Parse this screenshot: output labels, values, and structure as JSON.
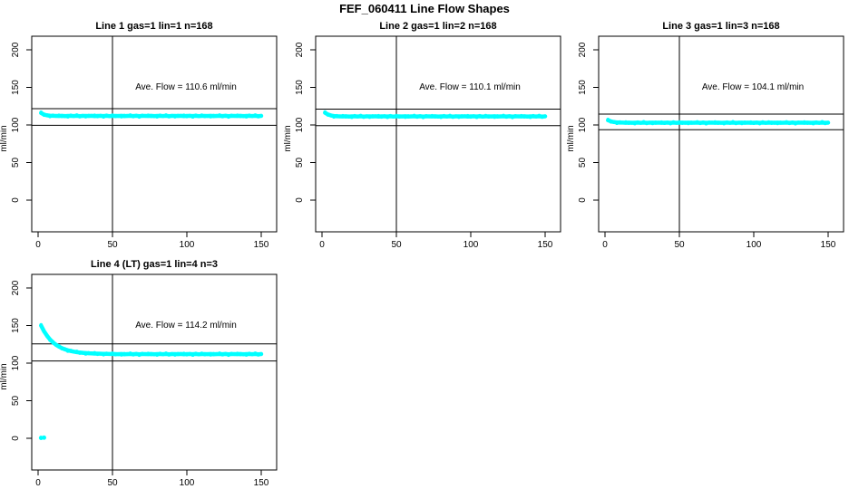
{
  "page_title": "FEF_060411  Line Flow Shapes",
  "colors": {
    "data_points": "#00FFFF",
    "axis": "#000000",
    "background": "#FFFFFF"
  },
  "chart_data": {
    "type": "scatter",
    "title": "FEF_060411  Line Flow Shapes",
    "xlabel": "",
    "ylabel": "ml/min",
    "xlim": [
      0,
      155
    ],
    "ylim": [
      0,
      200
    ],
    "xticks": [
      0,
      50,
      100,
      150
    ],
    "yticks": [
      0,
      50,
      100,
      150,
      200
    ],
    "grid": false,
    "legend": "none",
    "point_color": "#00FFFF",
    "vline_x": 50,
    "x": [
      2,
      4,
      6,
      8,
      10,
      12,
      14,
      16,
      18,
      20,
      22,
      24,
      26,
      28,
      30,
      32,
      34,
      36,
      38,
      40,
      42,
      44,
      46,
      48,
      50,
      52,
      54,
      56,
      58,
      60,
      62,
      64,
      66,
      68,
      70,
      72,
      74,
      76,
      78,
      80,
      82,
      84,
      86,
      88,
      90,
      92,
      94,
      96,
      98,
      100,
      102,
      104,
      106,
      108,
      110,
      112,
      114,
      116,
      118,
      120,
      122,
      124,
      126,
      128,
      130,
      132,
      134,
      136,
      138,
      140,
      142,
      144,
      146,
      148,
      150
    ],
    "subplots": [
      {
        "title": "Line 1 gas=1 lin=1 n=168",
        "ave_flow": 110.6,
        "annotation": "Ave. Flow =  110.6  ml/min",
        "ref_lines_y": [
          99.5,
          121.7
        ],
        "band_spread": 2.2,
        "y": [
          115.9,
          113.8,
          112.8,
          112.4,
          112.2,
          112.1,
          111.9,
          112.2,
          111.8,
          112.0,
          112.1,
          111.9,
          112.2,
          111.8,
          112.0,
          112.1,
          111.9,
          112.2,
          111.8,
          112.0,
          112.1,
          111.9,
          112.2,
          111.8,
          112.0,
          112.1,
          111.9,
          112.2,
          111.8,
          112.0,
          112.1,
          111.9,
          112.2,
          111.8,
          112.0,
          112.1,
          111.9,
          112.2,
          111.8,
          112.0,
          112.1,
          111.9,
          112.2,
          111.8,
          112.0,
          112.1,
          111.9,
          112.2,
          111.8,
          112.0,
          112.1,
          111.9,
          112.2,
          111.8,
          112.0,
          112.1,
          111.9,
          112.2,
          111.8,
          112.0,
          112.1,
          111.9,
          112.2,
          111.8,
          112.0,
          112.1,
          111.9,
          112.2,
          111.8,
          112.0,
          112.1,
          111.9,
          112.2,
          111.8,
          112.0
        ],
        "outliers": []
      },
      {
        "title": "Line 2 gas=1 lin=2 n=168",
        "ave_flow": 110.1,
        "annotation": "Ave. Flow =  110.1  ml/min",
        "ref_lines_y": [
          99.1,
          121.1
        ],
        "band_spread": 2.2,
        "y": [
          116.2,
          114.0,
          112.6,
          111.9,
          111.6,
          111.5,
          111.3,
          111.6,
          111.2,
          111.4,
          111.5,
          111.3,
          111.6,
          111.2,
          111.4,
          111.5,
          111.3,
          111.6,
          111.2,
          111.4,
          111.5,
          111.3,
          111.6,
          111.2,
          111.4,
          111.5,
          111.3,
          111.6,
          111.2,
          111.4,
          111.5,
          111.3,
          111.6,
          111.2,
          111.4,
          111.5,
          111.3,
          111.6,
          111.2,
          111.4,
          111.5,
          111.3,
          111.6,
          111.2,
          111.4,
          111.5,
          111.3,
          111.6,
          111.2,
          111.4,
          111.5,
          111.3,
          111.6,
          111.2,
          111.4,
          111.5,
          111.3,
          111.6,
          111.2,
          111.4,
          111.5,
          111.3,
          111.6,
          111.2,
          111.4,
          111.5,
          111.3,
          111.6,
          111.2,
          111.4,
          111.5,
          111.3,
          111.6,
          111.2,
          111.4
        ],
        "outliers": []
      },
      {
        "title": "Line 3 gas=1 lin=3 n=168",
        "ave_flow": 104.1,
        "annotation": "Ave. Flow =  104.1  ml/min",
        "ref_lines_y": [
          93.7,
          114.5
        ],
        "band_spread": 2.2,
        "y": [
          106.3,
          104.8,
          103.9,
          103.4,
          103.2,
          103.1,
          102.9,
          103.2,
          102.8,
          103.0,
          103.1,
          102.9,
          103.2,
          102.8,
          103.0,
          103.1,
          102.9,
          103.2,
          102.8,
          103.0,
          103.1,
          102.9,
          103.2,
          102.8,
          103.0,
          103.1,
          102.9,
          103.2,
          102.8,
          103.0,
          103.1,
          102.9,
          103.2,
          102.8,
          103.0,
          103.1,
          102.9,
          103.2,
          102.8,
          103.0,
          103.1,
          102.9,
          103.2,
          102.8,
          103.0,
          103.1,
          102.9,
          103.2,
          102.8,
          103.0,
          103.1,
          102.9,
          103.2,
          102.8,
          103.0,
          103.1,
          102.9,
          103.2,
          102.8,
          103.0,
          103.1,
          102.9,
          103.2,
          102.8,
          103.0,
          103.1,
          102.9,
          103.2,
          102.8,
          103.0,
          103.1,
          102.9,
          103.2,
          102.8,
          103.0
        ],
        "outliers": []
      },
      {
        "title": "Line 4 (LT) gas=1 lin=4 n=3",
        "ave_flow": 114.2,
        "annotation": "Ave. Flow =  114.2  ml/min",
        "ref_lines_y": [
          102.8,
          125.6
        ],
        "band_spread": 2.0,
        "y": [
          150.0,
          142.4,
          136.4,
          131.5,
          127.6,
          124.5,
          122.0,
          120.0,
          118.4,
          117.1,
          116.1,
          115.3,
          114.6,
          114.1,
          113.7,
          113.4,
          113.1,
          112.9,
          112.7,
          112.6,
          112.5,
          112.4,
          112.3,
          112.2,
          112.2,
          112.1,
          111.9,
          112.2,
          111.8,
          112.0,
          112.1,
          111.9,
          112.2,
          111.8,
          112.0,
          112.1,
          111.9,
          112.2,
          111.8,
          112.0,
          112.1,
          111.9,
          112.2,
          111.8,
          112.0,
          112.1,
          111.9,
          112.2,
          111.8,
          112.0,
          112.1,
          111.9,
          112.2,
          111.8,
          112.0,
          112.1,
          111.9,
          112.2,
          111.8,
          112.0,
          112.1,
          111.9,
          112.2,
          111.8,
          112.0,
          112.1,
          111.9,
          112.2,
          111.8,
          112.0,
          112.1,
          111.9,
          112.2,
          111.8,
          112.0
        ],
        "outliers": [
          [
            2,
            0.5
          ],
          [
            4,
            0.8
          ]
        ]
      }
    ]
  }
}
